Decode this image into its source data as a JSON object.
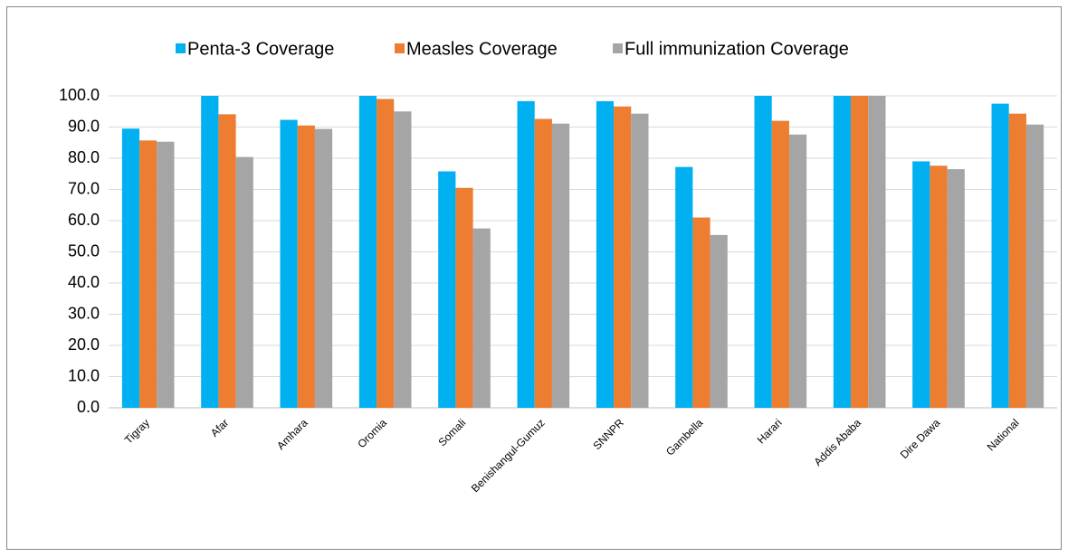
{
  "chart_data": {
    "type": "bar",
    "categories": [
      "Tigray",
      "Afar",
      "Amhara",
      "Oromia",
      "Somali",
      "Benishangul-Gumuz",
      "SNNPR",
      "Gambella",
      "Harari",
      "Addis Ababa",
      "Dire Dawa",
      "National"
    ],
    "series": [
      {
        "name": "Penta-3 Coverage",
        "color": "#00b0f0",
        "values": [
          89.5,
          100,
          92.3,
          100,
          75.8,
          98.3,
          98.3,
          77.2,
          100,
          100,
          79,
          97.5
        ]
      },
      {
        "name": "Measles Coverage",
        "color": "#ed7d31",
        "values": [
          85.7,
          94.1,
          90.5,
          99,
          70.5,
          92.6,
          96.6,
          61,
          92,
          100,
          77.6,
          94.3
        ]
      },
      {
        "name": "Full immunization Coverage",
        "color": "#a5a5a5",
        "values": [
          85.3,
          80.4,
          89.4,
          95,
          57.5,
          91.1,
          94.3,
          55.4,
          87.6,
          100,
          76.5,
          90.8
        ]
      }
    ],
    "ylim": [
      0,
      100
    ],
    "yticks": [
      {
        "value": 0,
        "label": "0.0"
      },
      {
        "value": 10,
        "label": "10.0"
      },
      {
        "value": 20,
        "label": "20.0"
      },
      {
        "value": 30,
        "label": "30.0"
      },
      {
        "value": 40,
        "label": "40.0"
      },
      {
        "value": 50,
        "label": "50.0"
      },
      {
        "value": 60,
        "label": "60.0"
      },
      {
        "value": 70,
        "label": "70.0"
      },
      {
        "value": 80,
        "label": "80.0"
      },
      {
        "value": 90,
        "label": "90.0"
      },
      {
        "value": 100,
        "label": "100.0"
      }
    ],
    "grid": true,
    "legend": "top"
  }
}
